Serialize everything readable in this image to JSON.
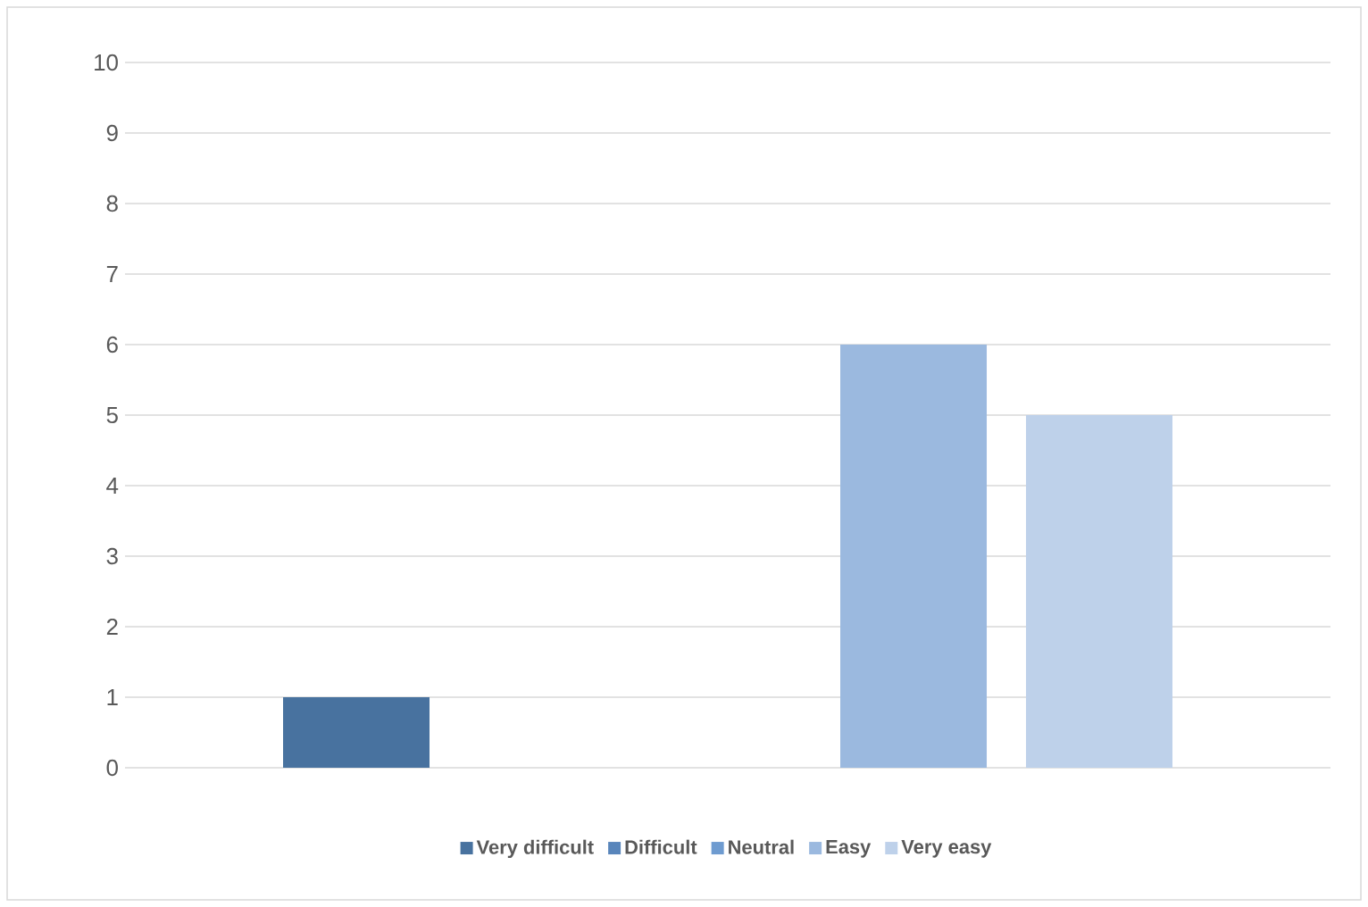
{
  "chart_data": {
    "type": "bar",
    "categories": [
      null
    ],
    "series": [
      {
        "name": "Very difficult",
        "color": "#48729f",
        "values": [
          1
        ]
      },
      {
        "name": "Difficult",
        "color": "#5885bb",
        "values": [
          0
        ]
      },
      {
        "name": "Neutral",
        "color": "#6e9bd0",
        "values": [
          0
        ]
      },
      {
        "name": "Easy",
        "color": "#9bb9df",
        "values": [
          6
        ]
      },
      {
        "name": "Very easy",
        "color": "#bed1ea",
        "values": [
          5
        ]
      }
    ],
    "ylim": [
      0,
      10
    ],
    "yticks": [
      0,
      1,
      2,
      3,
      4,
      5,
      6,
      7,
      8,
      9,
      10
    ],
    "grid": "y",
    "legend": "bottom"
  }
}
